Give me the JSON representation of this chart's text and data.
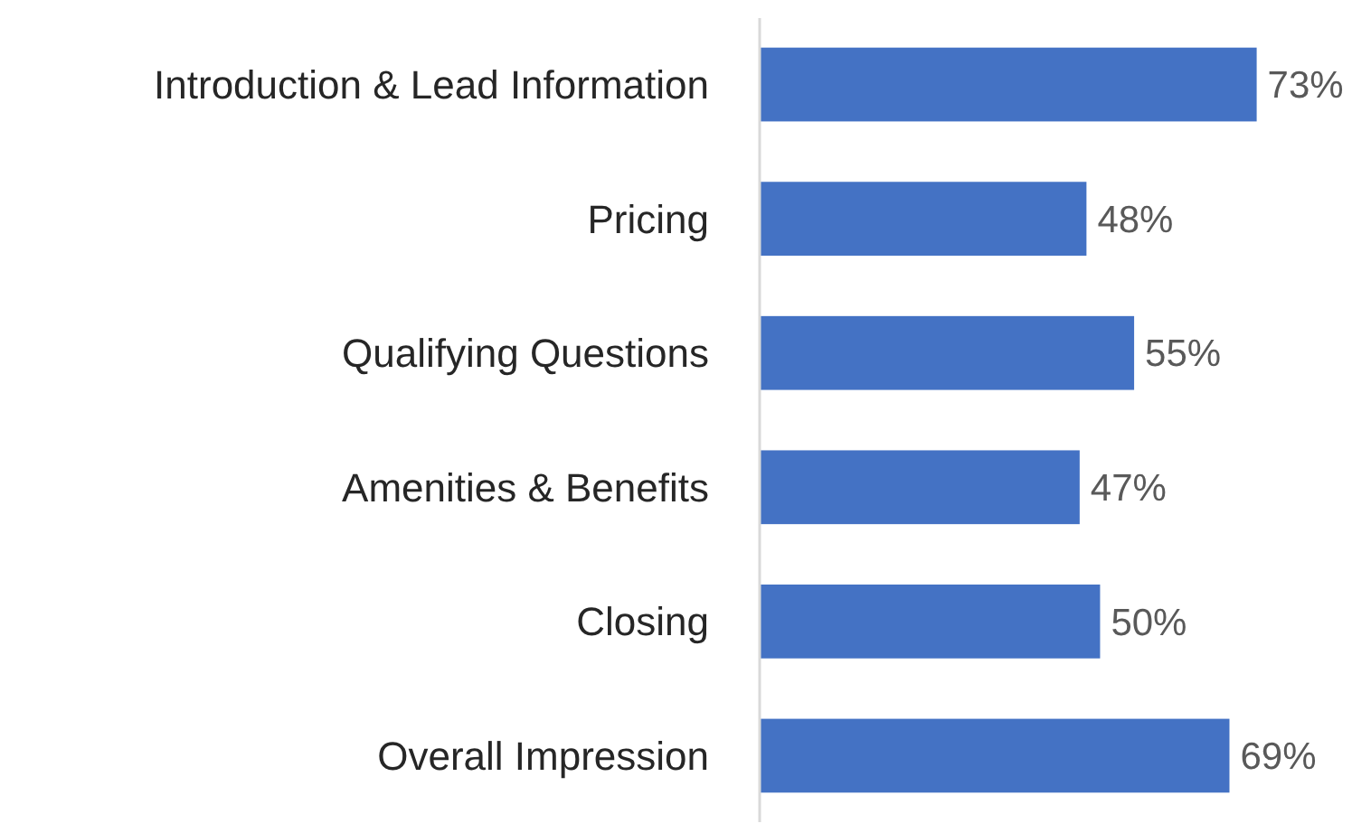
{
  "chart_data": {
    "type": "bar",
    "orientation": "horizontal",
    "categories": [
      "Introduction & Lead Information",
      "Pricing",
      "Qualifying Questions",
      "Amenities & Benefits",
      "Closing",
      "Overall Impression"
    ],
    "values": [
      73,
      48,
      55,
      47,
      50,
      69
    ],
    "value_labels": [
      "73%",
      "48%",
      "55%",
      "47%",
      "50%",
      "69%"
    ],
    "color": "#4472c4",
    "tick_labels": "y"
  }
}
